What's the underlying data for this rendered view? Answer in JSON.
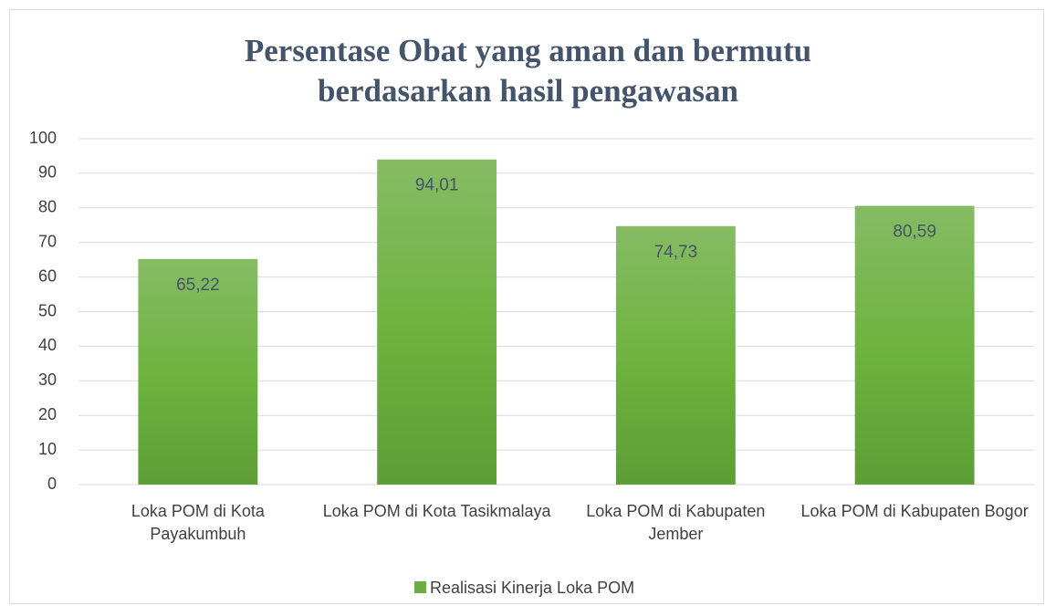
{
  "chart_data": {
    "type": "bar",
    "title": "Persentase Obat yang aman dan bermutu berdasarkan hasil pengawasan",
    "categories": [
      "Loka POM di Kota Payakumbuh",
      "Loka POM di Kota Tasikmalaya",
      "Loka POM di Kabupaten Jember",
      "Loka POM di Kabupaten Bogor"
    ],
    "series": [
      {
        "name": "Realisasi Kinerja Loka POM",
        "color": "#6aad45",
        "values": [
          65.22,
          94.01,
          74.73,
          80.59
        ],
        "value_labels": [
          "65,22",
          "94,01",
          "74,73",
          "80,59"
        ]
      }
    ],
    "ylim": [
      0,
      100
    ],
    "yticks": [
      0,
      10,
      20,
      30,
      40,
      50,
      60,
      70,
      80,
      90,
      100
    ],
    "grid": true,
    "legend": "bottom"
  }
}
